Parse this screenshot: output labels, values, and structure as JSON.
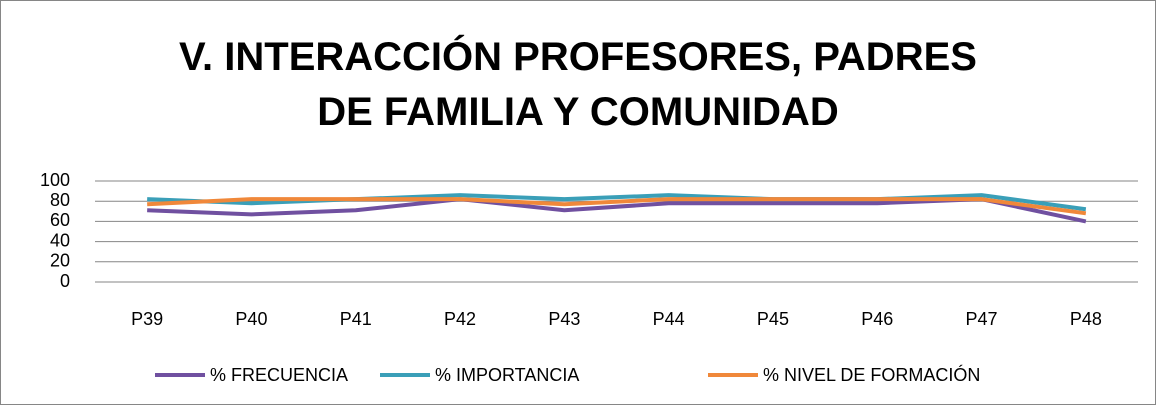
{
  "chart_data": {
    "type": "line",
    "title": "V. INTERACCIÓN PROFESORES, PADRES DE FAMILIA Y COMUNIDAD",
    "categories": [
      "P39",
      "P40",
      "P41",
      "P42",
      "P43",
      "P44",
      "P45",
      "P46",
      "P47",
      "P48"
    ],
    "series": [
      {
        "name": "% FRECUENCIA",
        "color": "#7050a0",
        "values": [
          71,
          67,
          71,
          82,
          71,
          78,
          78,
          78,
          82,
          60
        ]
      },
      {
        "name": "% IMPORTANCIA",
        "color": "#3a9fb8",
        "values": [
          82,
          78,
          82,
          86,
          82,
          86,
          82,
          82,
          86,
          72
        ]
      },
      {
        "name": "% NIVEL DE FORMACIÓN",
        "color": "#f0883a",
        "values": [
          77,
          82,
          82,
          82,
          77,
          82,
          82,
          82,
          82,
          68
        ]
      }
    ],
    "ylim": [
      0,
      100
    ],
    "yticks": [
      0,
      20,
      40,
      60,
      80,
      100
    ],
    "grid": true,
    "legend": "bottom"
  }
}
